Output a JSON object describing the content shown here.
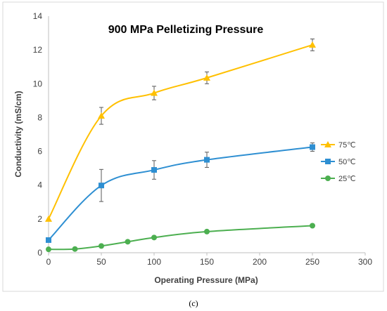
{
  "chart_data": {
    "type": "line",
    "title": "900 MPa Pelletizing Pressure",
    "xlabel": "Operating Pressure (MPa)",
    "ylabel": "Conductivity (mS/cm)",
    "xlim": [
      0,
      300
    ],
    "ylim": [
      0,
      14
    ],
    "xticks": [
      0,
      50,
      100,
      150,
      200,
      250,
      300
    ],
    "yticks": [
      0,
      2,
      4,
      6,
      8,
      10,
      12,
      14
    ],
    "grid": false,
    "legend_position": "right",
    "caption": "(c)",
    "series": [
      {
        "name": "75℃",
        "color": "#FFC000",
        "marker": "triangle",
        "points": [
          {
            "x": 0,
            "y": 2.0
          },
          {
            "x": 50,
            "y": 8.1,
            "err": 0.5
          },
          {
            "x": 100,
            "y": 9.45,
            "err": 0.4
          },
          {
            "x": 150,
            "y": 10.35,
            "err": 0.35
          },
          {
            "x": 250,
            "y": 12.3,
            "err": 0.35
          }
        ]
      },
      {
        "name": "50℃",
        "color": "#2E8FD2",
        "marker": "square",
        "points": [
          {
            "x": 0,
            "y": 0.75
          },
          {
            "x": 50,
            "y": 3.98,
            "err": 0.95
          },
          {
            "x": 100,
            "y": 4.9,
            "err": 0.55
          },
          {
            "x": 150,
            "y": 5.5,
            "err": 0.45
          },
          {
            "x": 250,
            "y": 6.25,
            "err": 0.25
          }
        ]
      },
      {
        "name": "25℃",
        "color": "#4CAF50",
        "marker": "circle",
        "points": [
          {
            "x": 0,
            "y": 0.2
          },
          {
            "x": 25,
            "y": 0.22
          },
          {
            "x": 50,
            "y": 0.4
          },
          {
            "x": 75,
            "y": 0.65
          },
          {
            "x": 100,
            "y": 0.9
          },
          {
            "x": 150,
            "y": 1.25
          },
          {
            "x": 250,
            "y": 1.6
          }
        ]
      }
    ]
  }
}
